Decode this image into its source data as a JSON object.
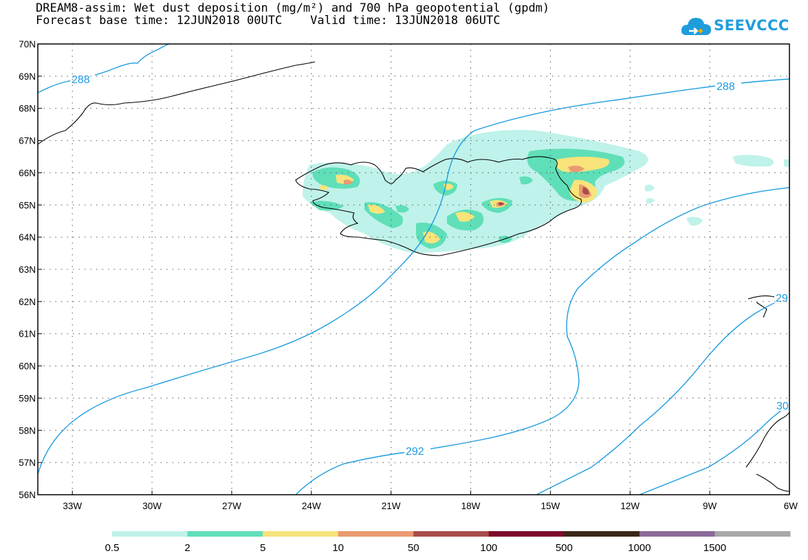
{
  "title": {
    "line1": "DREAM8-assim: Wet dust deposition (mg/m²) and 700 hPa geopotential (gpdm)",
    "line2": "Forecast base time: 12JUN2018 00UTC    Valid time: 13JUN2018 06UTC"
  },
  "logo": {
    "text": "SEEVCCC",
    "icon": "cloud-logo-icon",
    "color": "#1f9cdc"
  },
  "map": {
    "lat_range": [
      56,
      70
    ],
    "lon_range": [
      -34.3,
      -6
    ],
    "lat_ticks": [
      "70N",
      "69N",
      "68N",
      "67N",
      "66N",
      "65N",
      "64N",
      "63N",
      "62N",
      "61N",
      "60N",
      "59N",
      "58N",
      "57N",
      "56N"
    ],
    "lon_ticks": [
      "33W",
      "30W",
      "27W",
      "24W",
      "21W",
      "18W",
      "15W",
      "12W",
      "9W",
      "6W"
    ],
    "contour_color": "#1b9ce0",
    "contour_labels": [
      "288",
      "288",
      "292",
      "29",
      "30"
    ]
  },
  "colorbar": {
    "colors": [
      "#bff2ea",
      "#5fdfb8",
      "#f8e47a",
      "#ea9a70",
      "#a84c4c",
      "#7e0a2c",
      "#3b2718",
      "#8a6a99",
      "#a8a8a8"
    ],
    "labels": [
      "0.5",
      "2",
      "5",
      "10",
      "50",
      "100",
      "500",
      "1000",
      "1500"
    ]
  }
}
